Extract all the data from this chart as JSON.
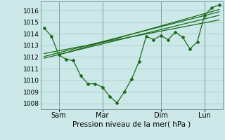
{
  "xlabel": "Pression niveau de la mer( hPa )",
  "bg_color": "#cce8e8",
  "plot_bg_color": "#cce8e8",
  "grid_color": "#aacccc",
  "line_color": "#1a6b1a",
  "ylim": [
    1007.5,
    1016.8
  ],
  "xlim": [
    -2,
    98
  ],
  "xticks": [
    8,
    32,
    64,
    88
  ],
  "xticklabels": [
    "Sam",
    "Mar",
    "Dim",
    "Lun"
  ],
  "yticks": [
    1008,
    1009,
    1010,
    1011,
    1012,
    1013,
    1014,
    1015,
    1016
  ],
  "vlines": [
    8,
    32,
    64,
    88
  ],
  "series1_x": [
    0,
    4,
    8,
    12,
    16,
    20,
    24,
    28,
    32,
    36,
    40,
    44,
    48,
    52,
    56,
    60,
    64,
    68,
    72,
    76,
    80,
    84,
    88,
    92,
    96
  ],
  "series1_y": [
    1014.5,
    1013.8,
    1012.2,
    1011.8,
    1011.7,
    1010.4,
    1009.7,
    1009.7,
    1009.4,
    1008.6,
    1008.05,
    1009.0,
    1010.1,
    1011.6,
    1013.8,
    1013.5,
    1013.85,
    1013.5,
    1014.15,
    1013.7,
    1012.7,
    1013.3,
    1015.6,
    1016.25,
    1016.5
  ],
  "series2_x": [
    0,
    96
  ],
  "series2_y": [
    1012.3,
    1015.2
  ],
  "series3_x": [
    0,
    96
  ],
  "series3_y": [
    1011.9,
    1015.6
  ],
  "series4_x": [
    0,
    96
  ],
  "series4_y": [
    1012.05,
    1015.9
  ],
  "series5_x": [
    8,
    96
  ],
  "series5_y": [
    1012.2,
    1016.1
  ]
}
